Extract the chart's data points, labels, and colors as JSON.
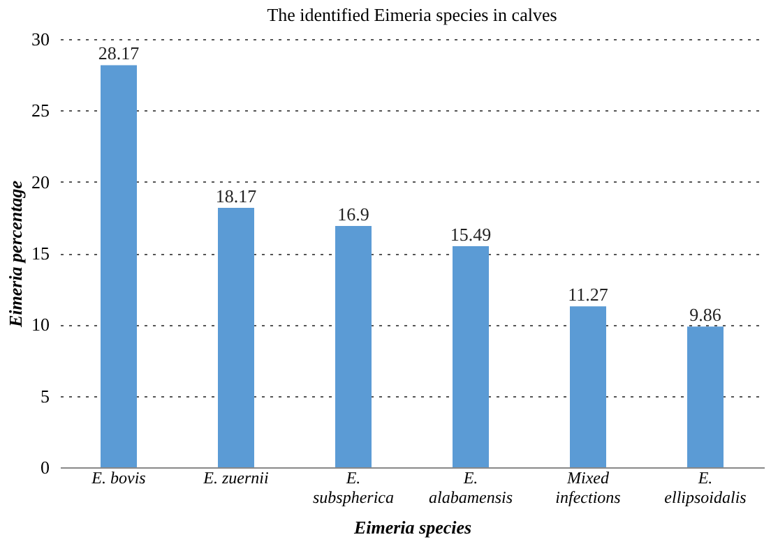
{
  "chart_data": {
    "type": "bar",
    "title": "The identified Eimeria species in calves",
    "xlabel": "Eimeria species",
    "ylabel": "Eimeria percentage",
    "categories": [
      "E. bovis",
      "E. zuernii",
      "E. subspherica",
      "E. alabamensis",
      "Mixed infections",
      "E. ellipsoidalis"
    ],
    "values": [
      28.17,
      18.17,
      16.9,
      15.49,
      11.27,
      9.86
    ],
    "color": "#5b9bd5",
    "ylim": [
      0,
      30
    ],
    "yticks": [
      0,
      5,
      10,
      15,
      20,
      25,
      30
    ],
    "grid": "y",
    "data_labels": true
  }
}
